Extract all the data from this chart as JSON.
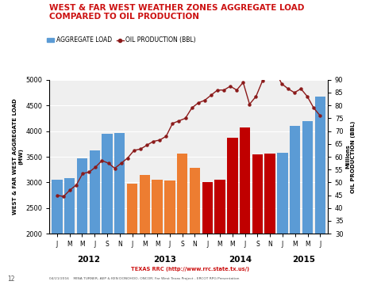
{
  "title_line1": "WEST & FAR WEST WEATHER ZONES AGGREGATE LOAD",
  "title_line2": "COMPARED TO OIL PRODUCTION",
  "title_color": "#CC1111",
  "legend_load": "AGGREGATE LOAD",
  "legend_oil": "OIL PRODUCTION (BBL)",
  "ylabel_left": "WEST & FAR WEST AGGREGATE LOAD\n(MW)",
  "ylabel_right": "Millions\nOIL PRODUCTION (BBL)",
  "xlabel_years": [
    "2012",
    "2013",
    "2014",
    "2015"
  ],
  "xtick_labels": [
    "J",
    "M",
    "M",
    "J",
    "S",
    "N",
    "J",
    "M",
    "M",
    "J",
    "S",
    "N",
    "J",
    "M",
    "M",
    "J",
    "S",
    "N",
    "J",
    "M",
    "M",
    "J"
  ],
  "ylim_left": [
    2000,
    5000
  ],
  "ylim_right": [
    30,
    90
  ],
  "yticks_left": [
    2000,
    2500,
    3000,
    3500,
    4000,
    4500,
    5000
  ],
  "yticks_right": [
    30,
    35,
    40,
    45,
    50,
    55,
    60,
    65,
    70,
    75,
    80,
    85,
    90
  ],
  "source_text": "TEXAS RRC (http://www.rrc.state.tx.us/)",
  "footer_text": "04/21/2016    MINA TURNER, AEP & KEN DONOHOO, ONCOR; Far West Texas Project - ERCOT RPG Presentation",
  "bar_colors_list": [
    "#5B9BD5",
    "#5B9BD5",
    "#5B9BD5",
    "#5B9BD5",
    "#5B9BD5",
    "#5B9BD5",
    "#ED7D31",
    "#ED7D31",
    "#ED7D31",
    "#ED7D31",
    "#ED7D31",
    "#ED7D31",
    "#C00000",
    "#C00000",
    "#C00000",
    "#C00000",
    "#C00000",
    "#C00000",
    "#5B9BD5",
    "#5B9BD5",
    "#5B9BD5",
    "#5B9BD5"
  ],
  "agg_load": [
    3060,
    3080,
    3470,
    3620,
    3950,
    3960,
    2970,
    3150,
    3050,
    3030,
    3560,
    3280,
    3000,
    3060,
    3870,
    4070,
    3540,
    3560,
    3580,
    4100,
    4200,
    4670
  ],
  "oil_prod": [
    45.0,
    44.5,
    47.0,
    49.0,
    53.5,
    54.0,
    56.0,
    58.5,
    57.5,
    55.5,
    57.5,
    59.5,
    62.5,
    63.0,
    64.5,
    66.0,
    66.5,
    68.0,
    73.0,
    74.0,
    75.0,
    79.0,
    81.0,
    82.0,
    84.0,
    86.0,
    86.0,
    87.5,
    86.0,
    89.0,
    80.5,
    83.5,
    89.5,
    91.5,
    93.5,
    88.5,
    86.5,
    85.0,
    86.5,
    83.5,
    79.0,
    76.0
  ],
  "n_oil": 42,
  "bg_color": "#EFEFEF",
  "grid_color": "#FFFFFF",
  "spine_color": "#AAAAAA"
}
